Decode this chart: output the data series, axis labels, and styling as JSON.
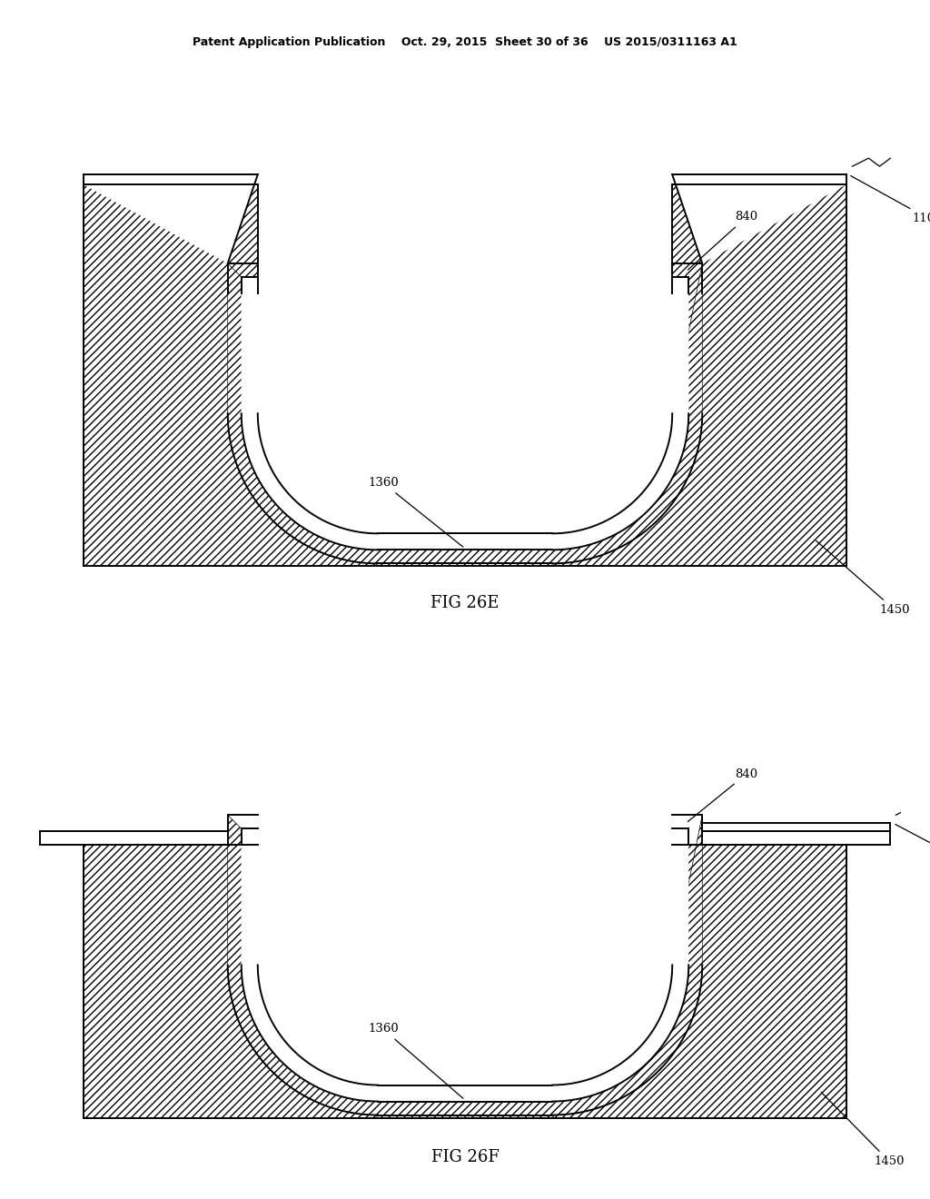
{
  "header": "Patent Application Publication    Oct. 29, 2015  Sheet 30 of 36    US 2015/0311163 A1",
  "fig_e_label": "FIG 26E",
  "fig_f_label": "FIG 26F",
  "bg_color": "#ffffff"
}
